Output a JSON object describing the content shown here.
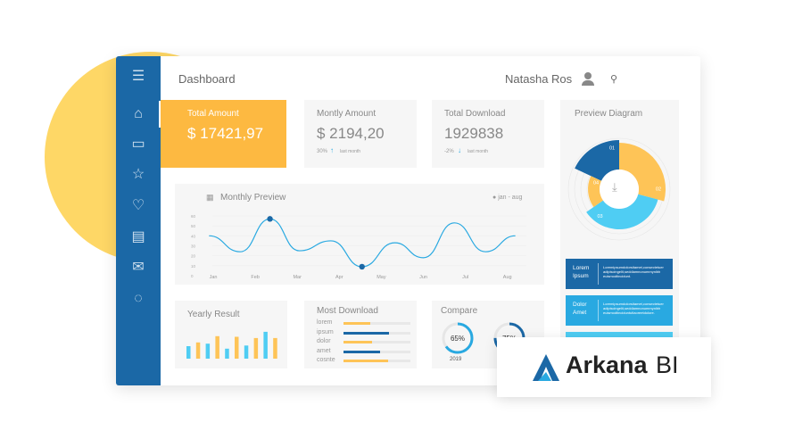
{
  "header": {
    "title": "Dashboard",
    "user": "Natasha Ros"
  },
  "sidebar": {
    "items": [
      "menu-icon",
      "home-icon",
      "folder-icon",
      "star-icon",
      "heart-icon",
      "document-icon",
      "mail-icon",
      "chat-icon"
    ]
  },
  "stats": [
    {
      "label": "Total Amount",
      "value": "$ 17421,97"
    },
    {
      "label": "Montly Amount",
      "value": "$ 2194,20",
      "change": "30%",
      "trend": "up",
      "note": "last month"
    },
    {
      "label": "Total Download",
      "value": "1929838",
      "change": "-2%",
      "trend": "down",
      "note": "last month"
    }
  ],
  "monthly": {
    "title": "Monthly Preview",
    "legend": "jan - aug",
    "chart_data": {
      "type": "line",
      "categories": [
        "Jan",
        "Feb",
        "Mar",
        "Apr",
        "May",
        "Jun",
        "Jul",
        "Aug"
      ],
      "yticks": [
        "60",
        "50",
        "40",
        "30",
        "20",
        "10",
        "0"
      ],
      "ylim": [
        0,
        60
      ],
      "points": [
        [
          -0.1,
          40
        ],
        [
          0.64,
          24
        ],
        [
          1.35,
          57
        ],
        [
          2.05,
          25
        ],
        [
          2.8,
          35
        ],
        [
          3.54,
          9
        ],
        [
          4.32,
          33
        ],
        [
          5.0,
          18
        ],
        [
          5.74,
          53
        ],
        [
          6.48,
          24
        ],
        [
          7.19,
          40
        ]
      ],
      "highlighted": [
        [
          1.35,
          57
        ],
        [
          3.54,
          9
        ]
      ]
    }
  },
  "yearly": {
    "title": "Yearly Result",
    "chart_data": {
      "type": "bar",
      "values": [
        20,
        26,
        24,
        36,
        16,
        35,
        21,
        33,
        43,
        33
      ],
      "colors": [
        "#4fcdf3",
        "#fec457",
        "#4fcdf3",
        "#fec457",
        "#4fcdf3",
        "#fec457",
        "#4fcdf3",
        "#fec457",
        "#4fcdf3",
        "#fec457"
      ]
    }
  },
  "most_download": {
    "title": "Most Download",
    "items": [
      {
        "label": "lorem",
        "value": 0.4,
        "color": "#fec457"
      },
      {
        "label": "ipsum",
        "value": 0.68,
        "color": "#1b68a6"
      },
      {
        "label": "dolor",
        "value": 0.42,
        "color": "#fec457"
      },
      {
        "label": "amet",
        "value": 0.55,
        "color": "#1b68a6"
      },
      {
        "label": "cosnte",
        "value": 0.67,
        "color": "#fec457"
      }
    ]
  },
  "compare": {
    "title": "Compare",
    "items": [
      {
        "value": "65%",
        "pct": 65,
        "year": "2019",
        "color": "#29a9e1"
      },
      {
        "value": "75%",
        "pct": 75,
        "year": "2020",
        "color": "#1b68a6"
      }
    ]
  },
  "preview": {
    "title": "Preview Diagram",
    "segments": [
      {
        "label": "01",
        "start": -65,
        "end": 0,
        "r": 55,
        "color": "#1b68a6"
      },
      {
        "label": "02",
        "start": 0,
        "end": 105,
        "r": 52,
        "color": "#fec457"
      },
      {
        "label": "03",
        "start": 105,
        "end": 235,
        "r": 45,
        "color": "#4fcdf3"
      },
      {
        "label": "04",
        "start": 235,
        "end": 295,
        "r": 35,
        "color": "#fec457"
      }
    ],
    "cards": [
      {
        "title": "Lorem Ipsum",
        "text": "Loremipsumdolorsitamet,consectetuer adipiscingelit,seddiamnonummynibh euismodtincidunt.",
        "color": "#1b68a6"
      },
      {
        "title": "Dolor Amet",
        "text": "Loremipsumdolorsitamet,consectetuer adipiscingelit,seddiamnonummynibh euismodtinciduntutlaoreetdolore.",
        "color": "#29a9e1"
      },
      {
        "title": "",
        "text": "",
        "color": "#4fcdf3"
      }
    ]
  },
  "brand": {
    "name": "Arkana",
    "suffix": "BI",
    "color": "#1b68a6"
  }
}
